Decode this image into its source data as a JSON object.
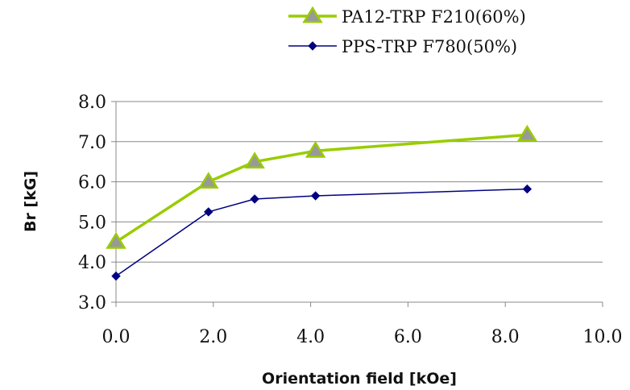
{
  "chart_data": {
    "type": "line",
    "xlabel": "Orientation field [kOe]",
    "ylabel": "Br  [kG]",
    "xlim": [
      0,
      10
    ],
    "ylim": [
      3,
      8
    ],
    "x_ticks": [
      "0.0",
      "2.0",
      "4.0",
      "6.0",
      "8.0",
      "10.0"
    ],
    "y_ticks": [
      "3.0",
      "4.0",
      "5.0",
      "6.0",
      "7.0",
      "8.0"
    ],
    "grid": "horizontal",
    "legend_position": "top",
    "series": [
      {
        "name": "PA12-TRP F210(60%)",
        "color": "#99cc00",
        "marker": "triangle",
        "marker_fill": "#999999",
        "x": [
          0.0,
          1.9,
          2.85,
          4.1,
          8.45
        ],
        "y": [
          4.5,
          6.0,
          6.5,
          6.77,
          7.17
        ]
      },
      {
        "name": "PPS-TRP F780(50%)",
        "color": "#000080",
        "marker": "diamond",
        "marker_fill": "#000080",
        "x": [
          0.0,
          1.9,
          2.85,
          4.1,
          8.45
        ],
        "y": [
          3.65,
          5.25,
          5.57,
          5.65,
          5.82
        ]
      }
    ]
  }
}
